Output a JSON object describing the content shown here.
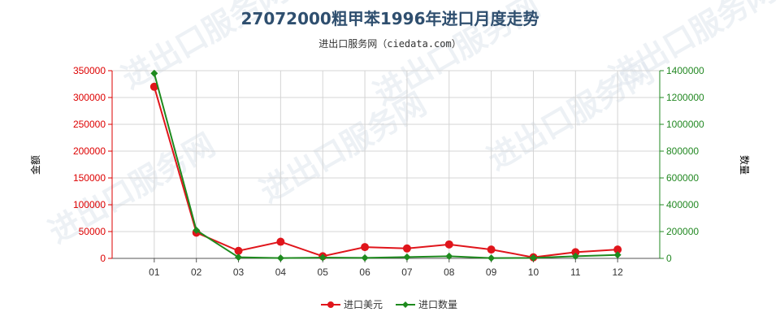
{
  "chart_data": {
    "type": "line",
    "title": "27072000粗甲苯1996年进口月度走势",
    "subtitle": "进出口服务网（ciedata.com）",
    "categories": [
      "01",
      "02",
      "03",
      "04",
      "05",
      "06",
      "07",
      "08",
      "09",
      "10",
      "11",
      "12"
    ],
    "y_left": {
      "label": "金额",
      "range": [
        0,
        350000
      ],
      "ticks": [
        "0",
        "50000",
        "100000",
        "150000",
        "200000",
        "250000",
        "300000",
        "350000"
      ],
      "color": "#dd0000"
    },
    "y_right": {
      "label": "数量",
      "range": [
        0,
        1400000
      ],
      "ticks": [
        "0",
        "200000",
        "400000",
        "600000",
        "800000",
        "1000000",
        "1200000",
        "1400000"
      ],
      "color": "#228822"
    },
    "series": [
      {
        "name": "进口美元",
        "axis": "left",
        "color": "#e0151b",
        "values": [
          320000,
          48000,
          14000,
          31000,
          4000,
          21000,
          18500,
          26000,
          16500,
          2000,
          11500,
          16500
        ]
      },
      {
        "name": "进口数量",
        "axis": "right",
        "color": "#1e8a1e",
        "values": [
          1380000,
          210000,
          8000,
          2000,
          6000,
          4000,
          10000,
          16000,
          2000,
          4000,
          16000,
          26000
        ]
      }
    ],
    "grid": true,
    "legend": "bottom-center",
    "watermark": "进出口服务网"
  }
}
